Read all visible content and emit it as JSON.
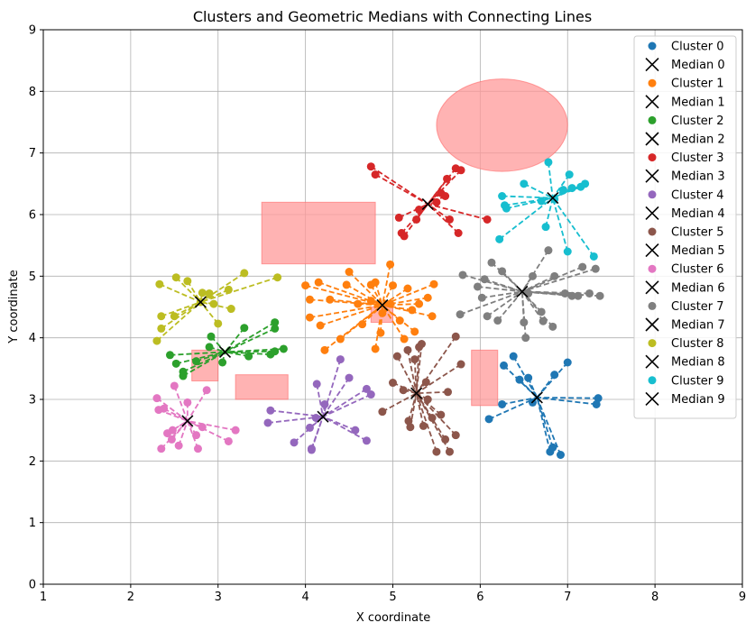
{
  "chart_data": {
    "type": "scatter",
    "title": "Clusters and Geometric Medians with Connecting Lines",
    "xlabel": "X coordinate",
    "ylabel": "Y coordinate",
    "xlim": [
      1,
      9
    ],
    "ylim": [
      0,
      9
    ],
    "xticks": [
      "1",
      "2",
      "3",
      "4",
      "5",
      "6",
      "7",
      "8",
      "9"
    ],
    "yticks": [
      "0",
      "1",
      "2",
      "3",
      "4",
      "5",
      "6",
      "7",
      "8",
      "9"
    ],
    "grid": true,
    "legend_position": "top-right",
    "obstacle_color": "#ff9999",
    "obstacles": [
      {
        "shape": "rect",
        "x": 3.5,
        "y": 5.2,
        "width": 1.3,
        "height": 1.0
      },
      {
        "shape": "rect",
        "x": 3.2,
        "y": 3.0,
        "width": 0.6,
        "height": 0.4
      },
      {
        "shape": "rect",
        "x": 2.7,
        "y": 3.3,
        "width": 0.3,
        "height": 0.5
      },
      {
        "shape": "rect",
        "x": 5.9,
        "y": 2.9,
        "width": 0.3,
        "height": 0.9
      },
      {
        "shape": "rect",
        "x": 4.75,
        "y": 4.25,
        "width": 0.25,
        "height": 0.25
      },
      {
        "shape": "ellipse",
        "cx": 6.25,
        "cy": 7.45,
        "rx": 0.75,
        "ry": 0.75
      }
    ],
    "series": [
      {
        "name": "Cluster 0",
        "median_name": "Median 0",
        "color": "#1f77b4",
        "median": [
          6.65,
          3.03
        ],
        "points": [
          [
            6.1,
            2.68
          ],
          [
            6.25,
            2.92
          ],
          [
            6.27,
            3.55
          ],
          [
            6.38,
            3.7
          ],
          [
            6.45,
            3.32
          ],
          [
            6.55,
            3.35
          ],
          [
            6.6,
            2.95
          ],
          [
            6.8,
            2.15
          ],
          [
            6.83,
            2.22
          ],
          [
            6.85,
            3.4
          ],
          [
            6.92,
            2.1
          ],
          [
            7.0,
            3.6
          ],
          [
            7.35,
            3.02
          ],
          [
            7.33,
            2.92
          ]
        ]
      },
      {
        "name": "Cluster 1",
        "median_name": "Median 1",
        "color": "#ff7f0e",
        "median": [
          4.88,
          4.53
        ],
        "points": [
          [
            4.0,
            4.85
          ],
          [
            4.05,
            4.62
          ],
          [
            4.05,
            4.33
          ],
          [
            4.15,
            4.9
          ],
          [
            4.17,
            4.2
          ],
          [
            4.22,
            3.8
          ],
          [
            4.28,
            4.62
          ],
          [
            4.4,
            3.98
          ],
          [
            4.47,
            4.86
          ],
          [
            4.5,
            5.07
          ],
          [
            4.6,
            4.55
          ],
          [
            4.65,
            4.22
          ],
          [
            4.75,
            4.6
          ],
          [
            4.75,
            4.86
          ],
          [
            4.8,
            4.9
          ],
          [
            4.8,
            3.82
          ],
          [
            4.86,
            4.08
          ],
          [
            4.88,
            4.4
          ],
          [
            4.97,
            4.55
          ],
          [
            4.97,
            5.19
          ],
          [
            5.0,
            4.85
          ],
          [
            5.08,
            4.28
          ],
          [
            5.13,
            3.98
          ],
          [
            5.17,
            4.8
          ],
          [
            5.22,
            4.45
          ],
          [
            5.25,
            4.1
          ],
          [
            5.3,
            4.55
          ],
          [
            5.4,
            4.65
          ],
          [
            5.45,
            4.35
          ],
          [
            5.47,
            4.87
          ]
        ]
      },
      {
        "name": "Cluster 2",
        "median_name": "Median 2",
        "color": "#2ca02c",
        "median": [
          3.08,
          3.77
        ],
        "points": [
          [
            2.45,
            3.72
          ],
          [
            2.52,
            3.58
          ],
          [
            2.6,
            3.38
          ],
          [
            2.6,
            3.45
          ],
          [
            2.75,
            3.62
          ],
          [
            2.9,
            3.85
          ],
          [
            2.92,
            4.02
          ],
          [
            3.05,
            3.6
          ],
          [
            3.3,
            4.16
          ],
          [
            3.35,
            3.7
          ],
          [
            3.6,
            3.73
          ],
          [
            3.65,
            3.78
          ],
          [
            3.65,
            4.15
          ],
          [
            3.65,
            4.25
          ],
          [
            3.75,
            3.82
          ]
        ]
      },
      {
        "name": "Cluster 3",
        "median_name": "Median 3",
        "color": "#d62728",
        "median": [
          5.4,
          6.17
        ],
        "points": [
          [
            4.75,
            6.78
          ],
          [
            4.8,
            6.65
          ],
          [
            5.07,
            5.95
          ],
          [
            5.1,
            5.7
          ],
          [
            5.13,
            5.65
          ],
          [
            5.27,
            5.92
          ],
          [
            5.3,
            6.08
          ],
          [
            5.5,
            6.2
          ],
          [
            5.55,
            6.35
          ],
          [
            5.6,
            6.3
          ],
          [
            5.62,
            6.58
          ],
          [
            5.65,
            5.92
          ],
          [
            5.72,
            6.75
          ],
          [
            5.75,
            5.7
          ],
          [
            5.78,
            6.72
          ],
          [
            6.08,
            5.92
          ]
        ]
      },
      {
        "name": "Cluster 4",
        "median_name": "Median 4",
        "color": "#9467bd",
        "median": [
          4.2,
          2.72
        ],
        "points": [
          [
            3.57,
            2.62
          ],
          [
            3.6,
            2.82
          ],
          [
            3.87,
            2.3
          ],
          [
            4.05,
            2.54
          ],
          [
            4.07,
            2.2
          ],
          [
            4.07,
            2.18
          ],
          [
            4.12,
            2.7
          ],
          [
            4.13,
            3.25
          ],
          [
            4.22,
            2.92
          ],
          [
            4.4,
            3.65
          ],
          [
            4.5,
            3.35
          ],
          [
            4.57,
            2.5
          ],
          [
            4.7,
            2.33
          ],
          [
            4.7,
            3.17
          ],
          [
            4.75,
            3.08
          ]
        ]
      },
      {
        "name": "Cluster 5",
        "median_name": "Median 5",
        "color": "#8c564b",
        "median": [
          5.27,
          3.1
        ],
        "points": [
          [
            4.88,
            2.8
          ],
          [
            5.0,
            3.27
          ],
          [
            5.05,
            3.7
          ],
          [
            5.12,
            3.15
          ],
          [
            5.17,
            3.8
          ],
          [
            5.18,
            2.65
          ],
          [
            5.2,
            2.55
          ],
          [
            5.25,
            3.65
          ],
          [
            5.3,
            3.85
          ],
          [
            5.33,
            3.9
          ],
          [
            5.35,
            2.57
          ],
          [
            5.38,
            3.28
          ],
          [
            5.4,
            3.0
          ],
          [
            5.45,
            2.7
          ],
          [
            5.5,
            2.15
          ],
          [
            5.55,
            2.75
          ],
          [
            5.6,
            2.35
          ],
          [
            5.63,
            3.12
          ],
          [
            5.65,
            2.15
          ],
          [
            5.72,
            2.42
          ],
          [
            5.72,
            4.02
          ],
          [
            5.78,
            3.57
          ]
        ]
      },
      {
        "name": "Cluster 6",
        "median_name": "Median 6",
        "color": "#e377c2",
        "median": [
          2.65,
          2.65
        ],
        "points": [
          [
            2.3,
            3.02
          ],
          [
            2.32,
            2.83
          ],
          [
            2.35,
            2.2
          ],
          [
            2.38,
            2.85
          ],
          [
            2.42,
            2.45
          ],
          [
            2.47,
            2.35
          ],
          [
            2.48,
            2.5
          ],
          [
            2.5,
            3.22
          ],
          [
            2.55,
            2.25
          ],
          [
            2.65,
            2.95
          ],
          [
            2.75,
            2.42
          ],
          [
            2.77,
            2.2
          ],
          [
            2.82,
            2.55
          ],
          [
            2.87,
            3.15
          ],
          [
            3.12,
            2.32
          ],
          [
            3.2,
            2.5
          ]
        ]
      },
      {
        "name": "Cluster 7",
        "median_name": "Median 7",
        "color": "#7f7f7f",
        "median": [
          6.48,
          4.75
        ],
        "points": [
          [
            5.77,
            4.38
          ],
          [
            5.8,
            5.02
          ],
          [
            5.97,
            4.83
          ],
          [
            6.02,
            4.65
          ],
          [
            6.05,
            4.95
          ],
          [
            6.08,
            4.35
          ],
          [
            6.13,
            5.22
          ],
          [
            6.2,
            4.28
          ],
          [
            6.25,
            5.08
          ],
          [
            6.5,
            4.25
          ],
          [
            6.52,
            4.0
          ],
          [
            6.55,
            4.72
          ],
          [
            6.6,
            5.0
          ],
          [
            6.7,
            4.42
          ],
          [
            6.72,
            4.27
          ],
          [
            6.78,
            5.42
          ],
          [
            6.83,
            4.18
          ],
          [
            6.85,
            5.0
          ],
          [
            6.97,
            4.72
          ],
          [
            7.05,
            4.68
          ],
          [
            7.12,
            4.68
          ],
          [
            7.17,
            5.15
          ],
          [
            7.25,
            4.72
          ],
          [
            7.32,
            5.12
          ],
          [
            7.37,
            4.68
          ]
        ]
      },
      {
        "name": "Cluster 8",
        "median_name": "Median 8",
        "color": "#bcbd22",
        "median": [
          2.8,
          4.58
        ],
        "points": [
          [
            2.3,
            3.95
          ],
          [
            2.33,
            4.87
          ],
          [
            2.35,
            4.15
          ],
          [
            2.35,
            4.35
          ],
          [
            2.5,
            4.35
          ],
          [
            2.52,
            4.98
          ],
          [
            2.65,
            4.92
          ],
          [
            2.8,
            4.58
          ],
          [
            2.82,
            4.73
          ],
          [
            2.9,
            4.72
          ],
          [
            2.95,
            4.55
          ],
          [
            3.0,
            4.23
          ],
          [
            3.12,
            4.78
          ],
          [
            3.15,
            4.47
          ],
          [
            3.3,
            5.05
          ],
          [
            3.68,
            4.98
          ]
        ]
      },
      {
        "name": "Cluster 9",
        "median_name": "Median 9",
        "color": "#17becf",
        "median": [
          6.83,
          6.27
        ],
        "points": [
          [
            6.22,
            5.6
          ],
          [
            6.25,
            6.3
          ],
          [
            6.28,
            6.15
          ],
          [
            6.3,
            6.1
          ],
          [
            6.5,
            6.5
          ],
          [
            6.7,
            6.22
          ],
          [
            6.75,
            5.8
          ],
          [
            6.78,
            6.85
          ],
          [
            6.85,
            6.25
          ],
          [
            6.95,
            6.4
          ],
          [
            7.0,
            5.4
          ],
          [
            7.02,
            6.65
          ],
          [
            7.05,
            6.43
          ],
          [
            7.15,
            6.45
          ],
          [
            7.2,
            6.5
          ],
          [
            7.3,
            5.32
          ]
        ]
      }
    ]
  }
}
